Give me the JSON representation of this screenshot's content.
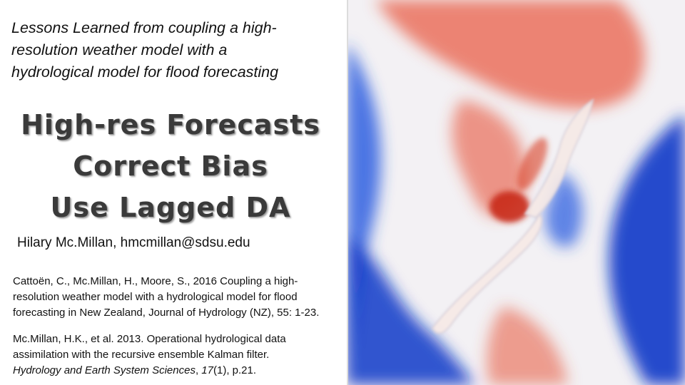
{
  "subtitle": {
    "line1": "Lessons Learned from coupling a high-",
    "line2": "resolution weather model with a",
    "line3": "hydrological model for flood forecasting"
  },
  "headline": {
    "line1": "High-res Forecasts",
    "line2": "Correct Bias",
    "line3": "Use Lagged DA"
  },
  "author": "Hilary Mc.Millan, hmcmillan@sdsu.edu",
  "references": {
    "ref1": {
      "line1": "Cattoën, C., Mc.Millan, H., Moore, S., 2016 Coupling a high-",
      "line2": "resolution weather model with a hydrological model for flood",
      "line3": "forecasting in New Zealand, Journal of Hydrology (NZ), 55: 1-23."
    },
    "ref2": {
      "line1": "Mc.Millan, H.K., et al. 2013. Operational hydrological data",
      "line2": "assimilation with the recursive ensemble Kalman filter.",
      "journal": "Hydrology and Earth System Sciences",
      "sep": ", ",
      "volume": "17",
      "rest": "(1), p.21."
    }
  },
  "map_image": {
    "colors": {
      "warm": "#e8553a",
      "hot": "#c8281a",
      "cool": "#2e5fe0",
      "deep": "#1238c8",
      "pale": "#f3f1f4"
    }
  }
}
